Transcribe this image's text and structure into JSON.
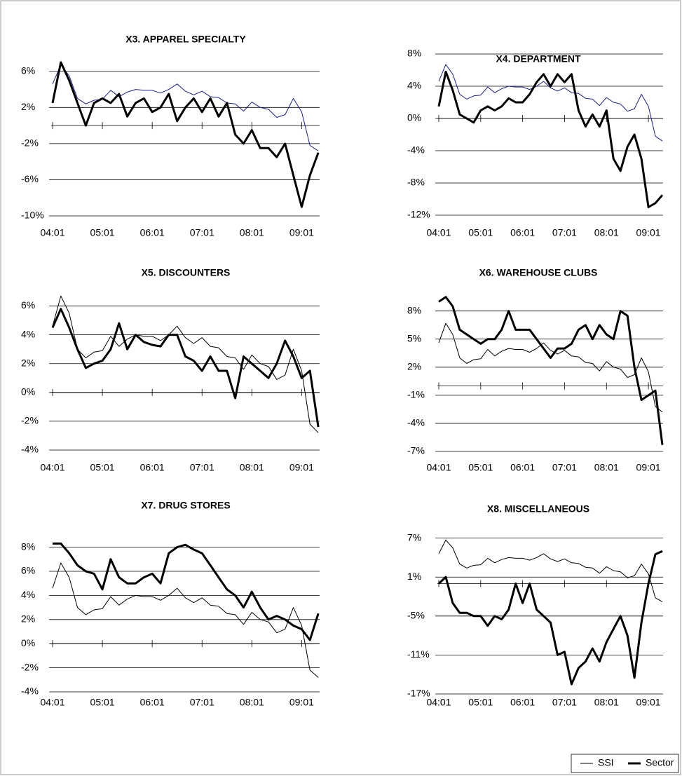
{
  "chart_data": [
    {
      "type": "line",
      "title": "X3. APPAREL SPECIALTY",
      "x": [
        0,
        2,
        4,
        6,
        8,
        10,
        12,
        14,
        16,
        18,
        20,
        22,
        24,
        26,
        28,
        30,
        32,
        34,
        36,
        38,
        40,
        42,
        44,
        46,
        48,
        50,
        52,
        54,
        56,
        58,
        60,
        62,
        64
      ],
      "xlim": [
        0,
        65
      ],
      "xticks": [
        {
          "value": 0,
          "label": "04:01"
        },
        {
          "value": 12,
          "label": "05:01"
        },
        {
          "value": 24,
          "label": "06:01"
        },
        {
          "value": 36,
          "label": "07:01"
        },
        {
          "value": 48,
          "label": "08:01"
        },
        {
          "value": 60,
          "label": "09:01"
        }
      ],
      "ylim": [
        -10,
        8
      ],
      "yticks": [
        {
          "value": 6,
          "label": "6%"
        },
        {
          "value": 2,
          "label": "2%"
        },
        {
          "value": -2,
          "label": "-2%"
        },
        {
          "value": -6,
          "label": "-6%"
        },
        {
          "value": -10,
          "label": "-10%"
        }
      ],
      "grid": true,
      "legend": "bottom-right",
      "series": [
        {
          "name": "SSI",
          "color": "#1c1c8a",
          "linewidth": 1,
          "values": [
            4.6,
            6.7,
            5.5,
            3.0,
            2.4,
            2.8,
            2.9,
            3.9,
            3.2,
            3.7,
            4.0,
            3.9,
            3.9,
            3.6,
            4.0,
            4.6,
            3.8,
            3.4,
            3.8,
            3.2,
            3.1,
            2.5,
            2.4,
            1.6,
            2.6,
            2.0,
            1.8,
            0.9,
            1.2,
            3.0,
            1.5,
            -2.2,
            -2.8
          ]
        },
        {
          "name": "Sector",
          "color": "#000000",
          "linewidth": 3,
          "values": [
            2.5,
            7,
            5,
            2.5,
            0,
            2.5,
            3,
            2.5,
            3.5,
            1,
            2.5,
            3,
            1.5,
            2,
            3.5,
            0.5,
            2,
            3,
            1.5,
            3,
            1,
            2.5,
            -1,
            -2,
            -0.5,
            -2.5,
            -2.5,
            -3.5,
            -2,
            -5.5,
            -9,
            -5.5,
            -3
          ]
        }
      ]
    },
    {
      "type": "line",
      "title": "X4. DEPARTMENT",
      "x": [
        0,
        2,
        4,
        6,
        8,
        10,
        12,
        14,
        16,
        18,
        20,
        22,
        24,
        26,
        28,
        30,
        32,
        34,
        36,
        38,
        40,
        42,
        44,
        46,
        48,
        50,
        52,
        54,
        56,
        58,
        60,
        62,
        64
      ],
      "xlim": [
        0,
        65
      ],
      "xticks": [
        {
          "value": 0,
          "label": "04:01"
        },
        {
          "value": 12,
          "label": "05:01"
        },
        {
          "value": 24,
          "label": "06:01"
        },
        {
          "value": 36,
          "label": "07:01"
        },
        {
          "value": 48,
          "label": "08:01"
        },
        {
          "value": 60,
          "label": "09:01"
        }
      ],
      "ylim": [
        -12,
        8
      ],
      "yticks": [
        {
          "value": 8,
          "label": "8%"
        },
        {
          "value": 4,
          "label": "4%"
        },
        {
          "value": 0,
          "label": "0%"
        },
        {
          "value": -4,
          "label": "-4%"
        },
        {
          "value": -8,
          "label": "-8%"
        },
        {
          "value": -12,
          "label": "-12%"
        }
      ],
      "grid": true,
      "series": [
        {
          "name": "SSI",
          "color": "#1c1c8a",
          "linewidth": 1,
          "values": [
            4.6,
            6.7,
            5.5,
            3.0,
            2.4,
            2.8,
            2.9,
            3.9,
            3.2,
            3.7,
            4.0,
            3.9,
            3.9,
            3.6,
            4.0,
            4.6,
            3.8,
            3.4,
            3.8,
            3.2,
            3.1,
            2.5,
            2.4,
            1.6,
            2.6,
            2.0,
            1.8,
            0.9,
            1.2,
            3.0,
            1.5,
            -2.2,
            -2.8
          ]
        },
        {
          "name": "Sector",
          "color": "#000000",
          "linewidth": 3,
          "values": [
            1.5,
            5.8,
            3.5,
            0.5,
            0,
            -0.5,
            1,
            1.5,
            1,
            1.5,
            2.5,
            2,
            2,
            3,
            4.5,
            5.5,
            4,
            5.5,
            4.5,
            5.5,
            1,
            -1,
            0.5,
            -1,
            1,
            -5,
            -6.5,
            -3.5,
            -2,
            -5,
            -11,
            -10.5,
            -9.5
          ]
        }
      ]
    },
    {
      "type": "line",
      "title": "X5. DISCOUNTERS",
      "x": [
        0,
        2,
        4,
        6,
        8,
        10,
        12,
        14,
        16,
        18,
        20,
        22,
        24,
        26,
        28,
        30,
        32,
        34,
        36,
        38,
        40,
        42,
        44,
        46,
        48,
        50,
        52,
        54,
        56,
        58,
        60,
        62,
        64
      ],
      "xlim": [
        0,
        65
      ],
      "xticks": [
        {
          "value": 0,
          "label": "04:01"
        },
        {
          "value": 12,
          "label": "05:01"
        },
        {
          "value": 24,
          "label": "06:01"
        },
        {
          "value": 36,
          "label": "07:01"
        },
        {
          "value": 48,
          "label": "08:01"
        },
        {
          "value": 60,
          "label": "09:01"
        }
      ],
      "ylim": [
        -4,
        7
      ],
      "yticks": [
        {
          "value": 6,
          "label": "6%"
        },
        {
          "value": 4,
          "label": "4%"
        },
        {
          "value": 2,
          "label": "2%"
        },
        {
          "value": 0,
          "label": "0%"
        },
        {
          "value": -2,
          "label": "-2%"
        },
        {
          "value": -4,
          "label": "-4%"
        }
      ],
      "grid": true,
      "series": [
        {
          "name": "SSI",
          "color": "#000000",
          "linewidth": 1,
          "values": [
            4.6,
            6.7,
            5.5,
            3.0,
            2.4,
            2.8,
            2.9,
            3.9,
            3.2,
            3.7,
            4.0,
            3.9,
            3.9,
            3.6,
            4.0,
            4.6,
            3.8,
            3.4,
            3.8,
            3.2,
            3.1,
            2.5,
            2.4,
            1.6,
            2.6,
            2.0,
            1.8,
            0.9,
            1.2,
            3.0,
            1.5,
            -2.2,
            -2.8
          ]
        },
        {
          "name": "Sector",
          "color": "#000000",
          "linewidth": 3,
          "values": [
            4.5,
            5.8,
            4.5,
            3,
            1.7,
            2,
            2.2,
            3,
            4.8,
            3,
            4,
            3.5,
            3.3,
            3.2,
            4,
            4,
            2.5,
            2.2,
            1.5,
            2.5,
            1.5,
            1.5,
            -0.4,
            2.5,
            2,
            1.5,
            1,
            2,
            3.6,
            2.5,
            1,
            1.5,
            -2.4
          ]
        }
      ]
    },
    {
      "type": "line",
      "title": "X6. WAREHOUSE CLUBS",
      "x": [
        0,
        2,
        4,
        6,
        8,
        10,
        12,
        14,
        16,
        18,
        20,
        22,
        24,
        26,
        28,
        30,
        32,
        34,
        36,
        38,
        40,
        42,
        44,
        46,
        48,
        50,
        52,
        54,
        56,
        58,
        60,
        62,
        64
      ],
      "xlim": [
        0,
        65
      ],
      "xticks": [
        {
          "value": 0,
          "label": "04:01"
        },
        {
          "value": 12,
          "label": "05:01"
        },
        {
          "value": 24,
          "label": "06:01"
        },
        {
          "value": 36,
          "label": "07:01"
        },
        {
          "value": 48,
          "label": "08:01"
        },
        {
          "value": 60,
          "label": "09:01"
        }
      ],
      "ylim": [
        -7,
        10
      ],
      "yticks": [
        {
          "value": 8,
          "label": "8%"
        },
        {
          "value": 5,
          "label": "5%"
        },
        {
          "value": 2,
          "label": "2%"
        },
        {
          "value": -1,
          "label": "-1%"
        },
        {
          "value": -4,
          "label": "-4%"
        },
        {
          "value": -7,
          "label": "-7%"
        }
      ],
      "grid": true,
      "series": [
        {
          "name": "SSI",
          "color": "#000000",
          "linewidth": 1,
          "values": [
            4.6,
            6.7,
            5.5,
            3.0,
            2.4,
            2.8,
            2.9,
            3.9,
            3.2,
            3.7,
            4.0,
            3.9,
            3.9,
            3.6,
            4.0,
            4.6,
            3.8,
            3.4,
            3.8,
            3.2,
            3.1,
            2.5,
            2.4,
            1.6,
            2.6,
            2.0,
            1.8,
            0.9,
            1.2,
            3.0,
            1.5,
            -2.2,
            -2.8
          ]
        },
        {
          "name": "Sector",
          "color": "#000000",
          "linewidth": 3,
          "values": [
            9,
            9.5,
            8.5,
            6,
            5.5,
            5,
            4.5,
            5,
            5,
            6,
            8,
            6,
            6,
            6,
            5,
            4,
            3,
            4,
            4,
            4.5,
            6,
            6.5,
            5,
            6.5,
            5.5,
            5,
            8,
            7.5,
            2,
            -1.5,
            -1,
            -0.5,
            -6.3
          ]
        }
      ]
    },
    {
      "type": "line",
      "title": "X7. DRUG STORES",
      "x": [
        0,
        2,
        4,
        6,
        8,
        10,
        12,
        14,
        16,
        18,
        20,
        22,
        24,
        26,
        28,
        30,
        32,
        34,
        36,
        38,
        40,
        42,
        44,
        46,
        48,
        50,
        52,
        54,
        56,
        58,
        60,
        62,
        64
      ],
      "xlim": [
        0,
        65
      ],
      "xticks": [
        {
          "value": 0,
          "label": "04:01"
        },
        {
          "value": 12,
          "label": "05:01"
        },
        {
          "value": 24,
          "label": "06:01"
        },
        {
          "value": 36,
          "label": "07:01"
        },
        {
          "value": 48,
          "label": "08:01"
        },
        {
          "value": 60,
          "label": "09:01"
        }
      ],
      "ylim": [
        -4,
        8.5
      ],
      "yticks": [
        {
          "value": 8,
          "label": "8%"
        },
        {
          "value": 6,
          "label": "6%"
        },
        {
          "value": 4,
          "label": "4%"
        },
        {
          "value": 2,
          "label": "2%"
        },
        {
          "value": 0,
          "label": "0%"
        },
        {
          "value": -2,
          "label": "-2%"
        },
        {
          "value": -4,
          "label": "-4%"
        }
      ],
      "grid": true,
      "series": [
        {
          "name": "SSI",
          "color": "#000000",
          "linewidth": 1,
          "values": [
            4.6,
            6.7,
            5.5,
            3.0,
            2.4,
            2.8,
            2.9,
            3.9,
            3.2,
            3.7,
            4.0,
            3.9,
            3.9,
            3.6,
            4.0,
            4.6,
            3.8,
            3.4,
            3.8,
            3.2,
            3.1,
            2.5,
            2.4,
            1.6,
            2.6,
            2.0,
            1.8,
            0.9,
            1.2,
            3.0,
            1.5,
            -2.2,
            -2.8
          ]
        },
        {
          "name": "Sector",
          "color": "#000000",
          "linewidth": 3,
          "values": [
            8.3,
            8.3,
            7.5,
            6.5,
            6,
            5.8,
            4.5,
            7,
            5.5,
            5,
            5,
            5.5,
            5.8,
            5,
            7.5,
            8,
            8.2,
            7.8,
            7.5,
            6.5,
            5.5,
            4.5,
            4,
            3,
            4.3,
            3,
            2,
            2.3,
            2,
            1.5,
            1.2,
            0.3,
            2.5
          ]
        }
      ]
    },
    {
      "type": "line",
      "title": "X8. MISCELLANEOUS",
      "x": [
        0,
        2,
        4,
        6,
        8,
        10,
        12,
        14,
        16,
        18,
        20,
        22,
        24,
        26,
        28,
        30,
        32,
        34,
        36,
        38,
        40,
        42,
        44,
        46,
        48,
        50,
        52,
        54,
        56,
        58,
        60,
        62,
        64
      ],
      "xlim": [
        0,
        65
      ],
      "xticks": [
        {
          "value": 0,
          "label": "04:01"
        },
        {
          "value": 12,
          "label": "05:01"
        },
        {
          "value": 24,
          "label": "06:01"
        },
        {
          "value": 36,
          "label": "07:01"
        },
        {
          "value": 48,
          "label": "08:01"
        },
        {
          "value": 60,
          "label": "09:01"
        }
      ],
      "ylim": [
        -17,
        7.5
      ],
      "yticks": [
        {
          "value": 7,
          "label": "7%"
        },
        {
          "value": 1,
          "label": "1%"
        },
        {
          "value": -5,
          "label": "-5%"
        },
        {
          "value": -11,
          "label": "-11%"
        },
        {
          "value": -17,
          "label": "-17%"
        }
      ],
      "grid": true,
      "series": [
        {
          "name": "SSI",
          "color": "#000000",
          "linewidth": 1,
          "values": [
            4.6,
            6.7,
            5.5,
            3.0,
            2.4,
            2.8,
            2.9,
            3.9,
            3.2,
            3.7,
            4.0,
            3.9,
            3.9,
            3.6,
            4.0,
            4.6,
            3.8,
            3.4,
            3.8,
            3.2,
            3.1,
            2.5,
            2.4,
            1.6,
            2.6,
            2.0,
            1.8,
            0.9,
            1.2,
            3.0,
            1.5,
            -2.2,
            -2.8
          ]
        },
        {
          "name": "Sector",
          "color": "#000000",
          "linewidth": 3,
          "values": [
            0,
            1,
            -3,
            -4.5,
            -4.5,
            -5,
            -5,
            -6.5,
            -5,
            -5.5,
            -4,
            0,
            -3,
            0,
            -4,
            -5,
            -6,
            -11,
            -10.5,
            -15.5,
            -13,
            -12,
            -10,
            -12,
            -9,
            -7,
            -5,
            -8,
            -14.5,
            -6,
            0,
            4.5,
            5
          ]
        }
      ]
    }
  ]
}
